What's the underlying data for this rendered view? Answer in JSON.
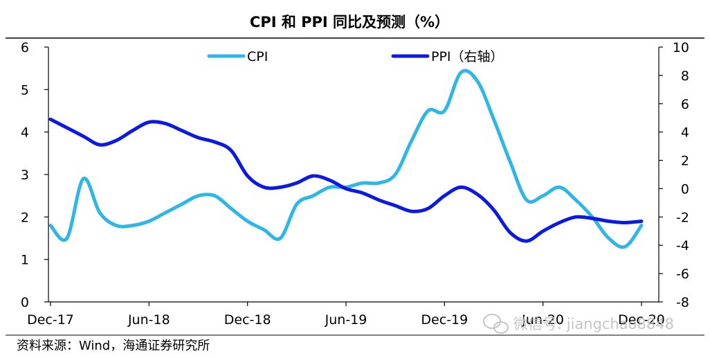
{
  "chart_data": {
    "type": "line",
    "title": "CPI 和 PPI 同比及预测（%）",
    "legend_position": "top",
    "grid": false,
    "x_ticks": [
      "Dec-17",
      "Jun-18",
      "Dec-18",
      "Jun-19",
      "Dec-19",
      "Jun-20",
      "Dec-20"
    ],
    "x_range": [
      "2017-12",
      "2020-12"
    ],
    "ylim_left": [
      0,
      6
    ],
    "yticks_left": [
      "0",
      "1",
      "2",
      "3",
      "4",
      "5",
      "6"
    ],
    "ylim_right": [
      -8,
      10
    ],
    "yticks_right": [
      "-8",
      "-6",
      "-4",
      "-2",
      "0",
      "2",
      "4",
      "6",
      "8",
      "10"
    ],
    "series": [
      {
        "name": "CPI",
        "axis": "left",
        "color": "#2eb6e8",
        "x": [
          "2017-12",
          "2018-01",
          "2018-02",
          "2018-03",
          "2018-04",
          "2018-05",
          "2018-06",
          "2018-07",
          "2018-08",
          "2018-09",
          "2018-10",
          "2018-11",
          "2018-12",
          "2019-01",
          "2019-02",
          "2019-03",
          "2019-04",
          "2019-05",
          "2019-06",
          "2019-07",
          "2019-08",
          "2019-09",
          "2019-10",
          "2019-11",
          "2019-12",
          "2020-01",
          "2020-02",
          "2020-03",
          "2020-04",
          "2020-05",
          "2020-06",
          "2020-07",
          "2020-08",
          "2020-09",
          "2020-10",
          "2020-11",
          "2020-12"
        ],
        "values": [
          1.8,
          1.5,
          2.9,
          2.1,
          1.8,
          1.8,
          1.9,
          2.1,
          2.3,
          2.5,
          2.5,
          2.2,
          1.9,
          1.7,
          1.5,
          2.3,
          2.5,
          2.7,
          2.7,
          2.8,
          2.8,
          3.0,
          3.8,
          4.5,
          4.5,
          5.4,
          5.2,
          4.3,
          3.3,
          2.4,
          2.5,
          2.7,
          2.4,
          2.0,
          1.5,
          1.3,
          1.8
        ]
      },
      {
        "name": "PPI（右轴）",
        "axis": "right",
        "color": "#0a19e6",
        "x": [
          "2017-12",
          "2018-01",
          "2018-02",
          "2018-03",
          "2018-04",
          "2018-05",
          "2018-06",
          "2018-07",
          "2018-08",
          "2018-09",
          "2018-10",
          "2018-11",
          "2018-12",
          "2019-01",
          "2019-02",
          "2019-03",
          "2019-04",
          "2019-05",
          "2019-06",
          "2019-07",
          "2019-08",
          "2019-09",
          "2019-10",
          "2019-11",
          "2019-12",
          "2020-01",
          "2020-02",
          "2020-03",
          "2020-04",
          "2020-05",
          "2020-06",
          "2020-07",
          "2020-08",
          "2020-09",
          "2020-10",
          "2020-11",
          "2020-12"
        ],
        "values": [
          4.9,
          4.3,
          3.7,
          3.1,
          3.4,
          4.1,
          4.7,
          4.6,
          4.1,
          3.6,
          3.3,
          2.7,
          0.9,
          0.1,
          0.1,
          0.4,
          0.9,
          0.6,
          0.0,
          -0.3,
          -0.8,
          -1.2,
          -1.6,
          -1.4,
          -0.5,
          0.1,
          -0.4,
          -1.5,
          -3.1,
          -3.7,
          -3.0,
          -2.4,
          -2.0,
          -2.1,
          -2.3,
          -2.4,
          -2.3
        ]
      }
    ]
  },
  "source_text": "资料来源：Wind，海通证券研究所",
  "watermark_text": "微信号: jiangchao8848"
}
